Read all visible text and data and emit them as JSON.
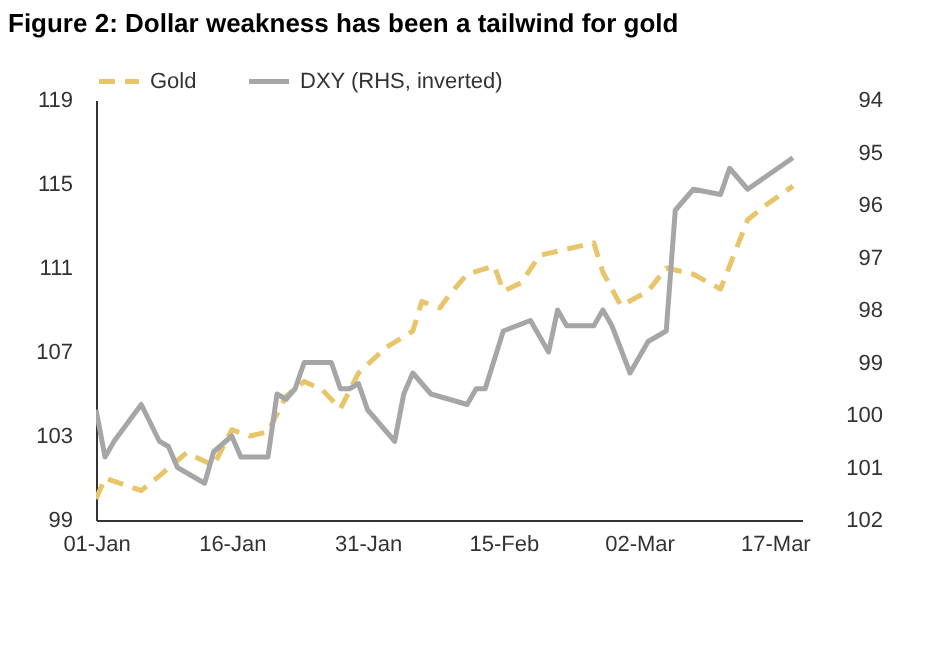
{
  "chart_data": {
    "type": "line",
    "title": "Figure 2: Dollar weakness has been a tailwind for gold",
    "x": [
      "--01-01",
      "--01-02",
      "--01-04",
      "--01-06",
      "--01-08",
      "--01-11",
      "--01-14",
      "--01-16",
      "--01-18",
      "--01-20",
      "--01-22",
      "--01-24",
      "--01-26",
      "--01-28",
      "--01-30",
      "--02-02",
      "--02-05",
      "--02-06",
      "--02-08",
      "--02-09",
      "--02-11",
      "--02-14",
      "--02-15",
      "--02-17",
      "--02-19",
      "--02-22",
      "--02-25",
      "--02-26",
      "--02-28",
      "--03-03",
      "--03-05",
      "--03-08",
      "--03-11",
      "--03-12",
      "--03-14",
      "--03-16",
      "--03-19"
    ],
    "series": [
      {
        "name": "Gold",
        "color": "#e8c56a",
        "line_style": "dashed",
        "values": [
          100.0,
          101.0,
          100.7,
          100.4,
          101.1,
          102.2,
          101.6,
          103.3,
          103.0,
          103.2,
          104.9,
          105.6,
          105.2,
          104.3,
          106.0,
          107.2,
          108.0,
          109.4,
          109.1,
          109.7,
          110.7,
          111.1,
          109.9,
          110.3,
          111.6,
          111.9,
          112.2,
          110.8,
          109.2,
          109.9,
          111.0,
          110.7,
          110.0,
          111.1,
          113.3,
          114.0,
          114.9
        ]
      },
      {
        "name": "DXY (RHS, inverted)",
        "color": "#a6a6a6",
        "line_style": "solid",
        "axis": "y2",
        "x": [
          "--01-01",
          "--01-02",
          "--01-03",
          "--01-06",
          "--01-08",
          "--01-09",
          "--01-10",
          "--01-13",
          "--01-14",
          "--01-16",
          "--01-17",
          "--01-20",
          "--01-21",
          "--01-22",
          "--01-23",
          "--01-24",
          "--01-27",
          "--01-28",
          "--01-29",
          "--01-30",
          "--01-31",
          "--02-03",
          "--02-04",
          "--02-05",
          "--02-07",
          "--02-09",
          "--02-11",
          "--02-12",
          "--02-13",
          "--02-15",
          "--02-18",
          "--02-20",
          "--02-21",
          "--02-22",
          "--02-25",
          "--02-26",
          "--02-27",
          "--03-01",
          "--03-03",
          "--03-05",
          "--03-06",
          "--03-08",
          "--03-11",
          "--03-12",
          "--03-14",
          "--03-19"
        ],
        "values": [
          99.9,
          100.8,
          100.5,
          99.8,
          100.5,
          100.6,
          101.0,
          101.3,
          100.7,
          100.4,
          100.8,
          100.8,
          99.6,
          99.7,
          99.5,
          99.0,
          99.0,
          99.5,
          99.5,
          99.4,
          99.9,
          100.5,
          99.6,
          99.2,
          99.6,
          99.7,
          99.8,
          99.5,
          99.5,
          98.4,
          98.2,
          98.8,
          98.0,
          98.3,
          98.3,
          98.0,
          98.3,
          99.2,
          98.6,
          98.4,
          96.1,
          95.7,
          95.8,
          95.3,
          95.7,
          95.1
        ]
      }
    ],
    "xlim": [
      "--01-01",
      "--03-20"
    ],
    "xticks": [
      {
        "value": "--01-01",
        "label": "01-Jan"
      },
      {
        "value": "--01-16",
        "label": "16-Jan"
      },
      {
        "value": "--01-31",
        "label": "31-Jan"
      },
      {
        "value": "--02-15",
        "label": "15-Feb"
      },
      {
        "value": "--03-02",
        "label": "02-Mar"
      },
      {
        "value": "--03-17",
        "label": "17-Mar"
      }
    ],
    "ylim": [
      99,
      119
    ],
    "yticks": [
      99,
      103,
      107,
      111,
      115,
      119
    ],
    "y2lim": [
      102,
      94
    ],
    "y2ticks": [
      94,
      95,
      96,
      97,
      98,
      99,
      100,
      101,
      102
    ],
    "grid": false,
    "legend": "top"
  }
}
